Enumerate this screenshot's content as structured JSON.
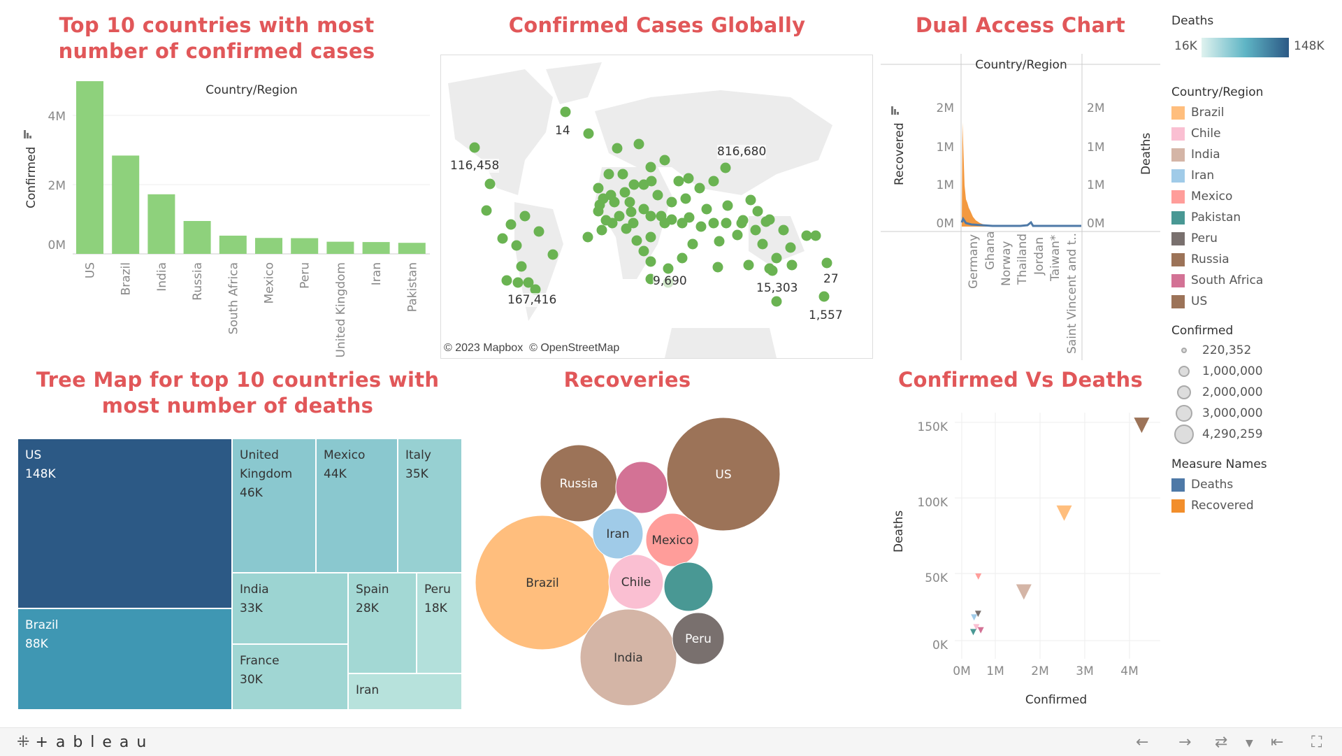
{
  "titles": {
    "bar": "Top 10 countries with most number of confirmed cases",
    "map": "Confirmed Cases Globally",
    "dual": "Dual Access Chart",
    "treemap": "Tree Map for top 10 countries with most number of deaths",
    "bubbles": "Recoveries",
    "scatter": "Confirmed Vs Deaths"
  },
  "colors": {
    "title": "#e15759",
    "bar_green": "#8ed17c",
    "map_dot": "#6ab352",
    "deaths_blue": "#4e79a7",
    "recovered_orange": "#f28e2b"
  },
  "chart_data": [
    {
      "id": "top10-confirmed",
      "type": "bar",
      "title": "Top 10 countries with most number of confirmed cases",
      "header": "Country/Region",
      "ylabel": "Confirmed",
      "yticks": [
        "4M",
        "2M",
        "0M"
      ],
      "ylim": [
        0,
        4500000
      ],
      "categories": [
        "US",
        "Brazil",
        "India",
        "Russia",
        "South Africa",
        "Mexico",
        "Peru",
        "United Kingdom",
        "Iran",
        "Pakistan"
      ],
      "values": [
        4290259,
        2442375,
        1480073,
        816680,
        452529,
        395489,
        389717,
        301708,
        293606,
        274289
      ]
    },
    {
      "id": "dual-axis",
      "type": "area",
      "title": "Dual Access Chart",
      "header": "Country/Region",
      "left_label": "Recovered",
      "right_label": "Deaths",
      "left_ticks": [
        "2M",
        "1M",
        "1M",
        "0M"
      ],
      "right_ticks": [
        "2M",
        "1M",
        "1M",
        "0M"
      ],
      "x_labels": [
        "Germany",
        "Ghana",
        "Norway",
        "Thailand",
        "Jordan",
        "Taiwan*",
        "Saint Vincent and t.."
      ],
      "series": [
        {
          "name": "Recovered"
        },
        {
          "name": "Deaths"
        }
      ]
    },
    {
      "id": "treemap-deaths",
      "type": "treemap",
      "title": "Tree Map for top 10 countries with most number of deaths",
      "items": [
        {
          "name": "US",
          "label": "US",
          "value": "148K",
          "color": "#2c5985"
        },
        {
          "name": "Brazil",
          "label": "Brazil",
          "value": "88K",
          "color": "#3f97b3"
        },
        {
          "name": "United Kingdom",
          "label": "United Kingdom",
          "value": "46K",
          "color": "#8ac8cf"
        },
        {
          "name": "Mexico",
          "label": "Mexico",
          "value": "44K",
          "color": "#8ac8cf"
        },
        {
          "name": "Italy",
          "label": "Italy",
          "value": "35K",
          "color": "#97d0d2"
        },
        {
          "name": "India",
          "label": "India",
          "value": "33K",
          "color": "#9cd4d2"
        },
        {
          "name": "Spain",
          "label": "Spain",
          "value": "28K",
          "color": "#a3d8d4"
        },
        {
          "name": "Peru",
          "label": "Peru",
          "value": "18K",
          "color": "#b3e0db"
        },
        {
          "name": "France",
          "label": "France",
          "value": "30K",
          "color": "#a0d6d3"
        },
        {
          "name": "Iran",
          "label": "Iran",
          "value": "",
          "color": "#b7e2dc"
        }
      ]
    },
    {
      "id": "recoveries-bubbles",
      "type": "bubble",
      "title": "Recoveries",
      "bubbles": [
        {
          "label": "US",
          "color": "#9c7358"
        },
        {
          "label": "Brazil",
          "color": "#ffbe7d"
        },
        {
          "label": "India",
          "color": "#d4b5a6"
        },
        {
          "label": "Russia",
          "color": "#9c7358"
        },
        {
          "label": "South Africa",
          "show_label": false,
          "color": "#d37295"
        },
        {
          "label": "Mexico",
          "color": "#ff9d9a"
        },
        {
          "label": "Iran",
          "color": "#a0cbe8"
        },
        {
          "label": "Chile",
          "color": "#fabfd2"
        },
        {
          "label": "Pakistan",
          "show_label": false,
          "color": "#499894"
        },
        {
          "label": "Peru",
          "color": "#79706e"
        }
      ]
    },
    {
      "id": "confirmed-vs-deaths",
      "type": "scatter",
      "title": "Confirmed Vs Deaths",
      "xlabel": "Confirmed",
      "ylabel": "Deaths",
      "xticks": [
        "0M",
        "1M",
        "2M",
        "3M",
        "4M"
      ],
      "yticks": [
        "150K",
        "100K",
        "50K",
        "0K"
      ],
      "xlim": [
        0,
        4500000
      ],
      "ylim": [
        0,
        160000
      ],
      "points": [
        {
          "country": "US",
          "x": 4290259,
          "y": 148011,
          "color": "#9c7358"
        },
        {
          "country": "Brazil",
          "x": 2442375,
          "y": 87618,
          "color": "#ffbe7d"
        },
        {
          "country": "India",
          "x": 1480073,
          "y": 33408,
          "color": "#d4b5a6"
        },
        {
          "country": "Mexico",
          "x": 395489,
          "y": 44022,
          "color": "#ff9d9a"
        },
        {
          "country": "South Africa",
          "x": 452529,
          "y": 7067,
          "color": "#d37295"
        },
        {
          "country": "Chile",
          "x": 347923,
          "y": 9187,
          "color": "#fabfd2"
        },
        {
          "country": "Peru",
          "x": 389717,
          "y": 18418,
          "color": "#79706e"
        },
        {
          "country": "Iran",
          "x": 293606,
          "y": 15912,
          "color": "#a0cbe8"
        },
        {
          "country": "Pakistan",
          "x": 274289,
          "y": 5842,
          "color": "#499894"
        }
      ]
    }
  ],
  "map": {
    "attribution": "© 2023 Mapbox  © OpenStreetMap",
    "labels": [
      "14",
      "116,458",
      "816,680",
      "167,416",
      "9,690",
      "15,303",
      "27",
      "1,557"
    ]
  },
  "legend": {
    "deaths": {
      "title": "Deaths",
      "min": "16K",
      "max": "148K"
    },
    "country": {
      "title": "Country/Region",
      "items": [
        {
          "label": "Brazil",
          "color": "#ffbe7d"
        },
        {
          "label": "Chile",
          "color": "#fabfd2"
        },
        {
          "label": "India",
          "color": "#d4b5a6"
        },
        {
          "label": "Iran",
          "color": "#a0cbe8"
        },
        {
          "label": "Mexico",
          "color": "#ff9d9a"
        },
        {
          "label": "Pakistan",
          "color": "#499894"
        },
        {
          "label": "Peru",
          "color": "#79706e"
        },
        {
          "label": "Russia",
          "color": "#9c7358"
        },
        {
          "label": "South Africa",
          "color": "#d37295"
        },
        {
          "label": "US",
          "color": "#9c7358"
        }
      ]
    },
    "confirmed": {
      "title": "Confirmed",
      "items": [
        "220,352",
        "1,000,000",
        "2,000,000",
        "3,000,000",
        "4,290,259"
      ]
    },
    "measures": {
      "title": "Measure Names",
      "items": [
        {
          "label": "Deaths",
          "color": "#4e79a7"
        },
        {
          "label": "Recovered",
          "color": "#f28e2b"
        }
      ]
    }
  },
  "footer": {
    "logo": "+ a b l e a u",
    "icons": [
      "undo-icon",
      "redo-icon",
      "revert-icon",
      "dropdown-icon",
      "back-to-start-icon",
      "fullscreen-icon"
    ]
  }
}
